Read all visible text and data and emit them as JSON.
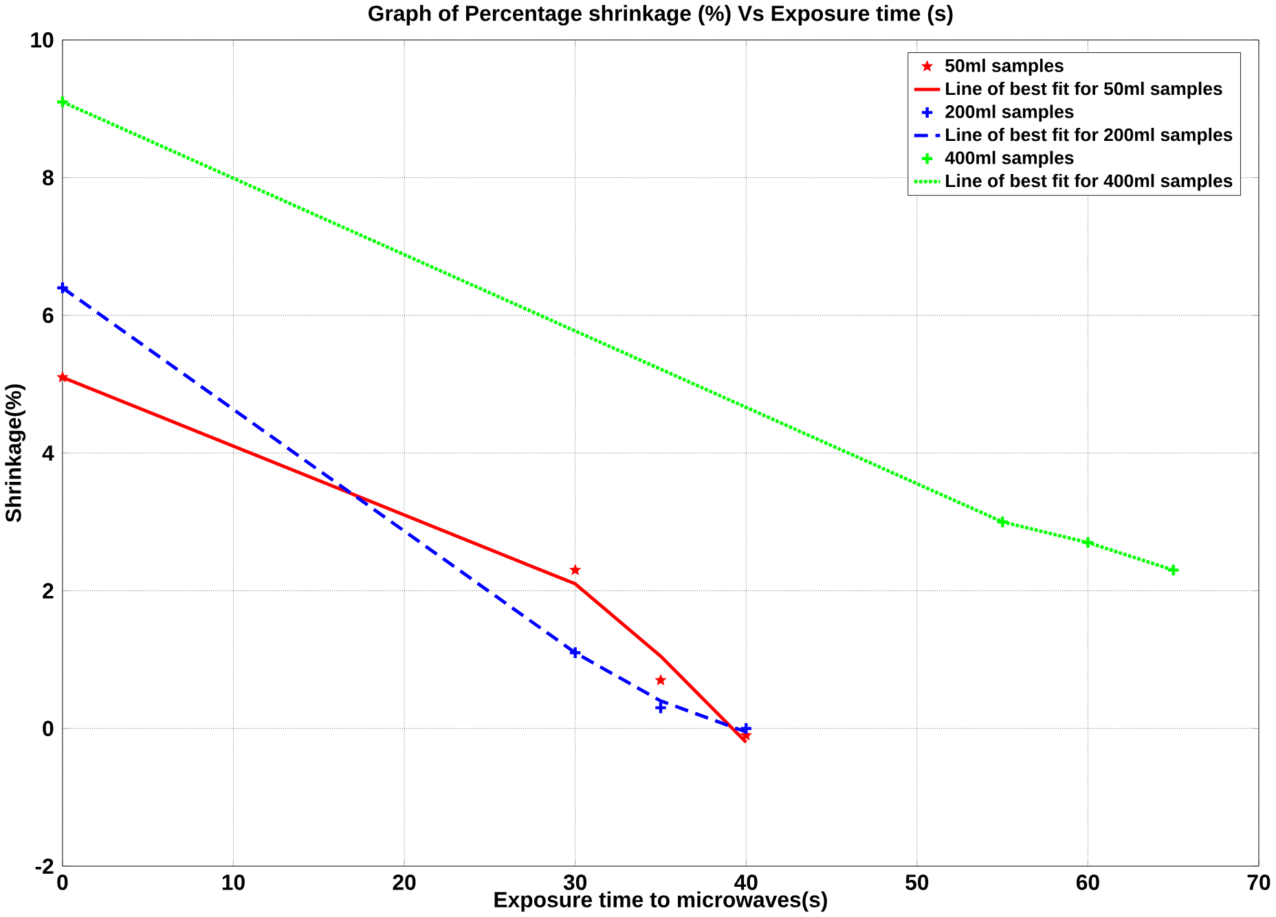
{
  "chart_data": {
    "type": "scatter",
    "title": "Graph of Percentage shrinkage (%) Vs Exposure time (s)",
    "xlabel": "Exposure time to microwaves(s)",
    "ylabel": "Shrinkage(%)",
    "xlim": [
      0,
      70
    ],
    "ylim": [
      -2,
      10
    ],
    "xticks": [
      0,
      10,
      20,
      30,
      40,
      50,
      60,
      70
    ],
    "yticks": [
      -2,
      0,
      2,
      4,
      6,
      8,
      10
    ],
    "grid": true,
    "legend": "top right",
    "series": [
      {
        "name": "50ml samples",
        "type": "scatter",
        "marker": "star",
        "color": "#ff0000",
        "x": [
          0,
          30,
          35,
          40
        ],
        "values": [
          5.1,
          2.3,
          0.7,
          -0.1
        ]
      },
      {
        "name": "Line of best fit for 50ml samples",
        "type": "line",
        "line_style": "solid",
        "color": "#ff0000",
        "x": [
          0,
          30,
          35,
          40
        ],
        "values": [
          5.1,
          2.1,
          1.05,
          -0.2
        ]
      },
      {
        "name": "200ml samples",
        "type": "scatter",
        "marker": "cross",
        "color": "#0000ff",
        "x": [
          0,
          30,
          35,
          40
        ],
        "values": [
          6.4,
          1.1,
          0.3,
          0.0
        ]
      },
      {
        "name": "Line of best fit for 200ml samples",
        "type": "line",
        "line_style": "dashed",
        "color": "#0000ff",
        "x": [
          0,
          30,
          35,
          40
        ],
        "values": [
          6.4,
          1.1,
          0.4,
          -0.05
        ]
      },
      {
        "name": "400ml samples",
        "type": "scatter",
        "marker": "cross",
        "color": "#00ff00",
        "x": [
          0,
          55,
          60,
          65
        ],
        "values": [
          9.1,
          3.0,
          2.7,
          2.3
        ]
      },
      {
        "name": "Line of best fit for 400ml samples",
        "type": "line",
        "line_style": "dotted",
        "color": "#00ff00",
        "x": [
          0,
          55,
          60,
          65
        ],
        "values": [
          9.1,
          3.0,
          2.7,
          2.3
        ]
      }
    ]
  }
}
